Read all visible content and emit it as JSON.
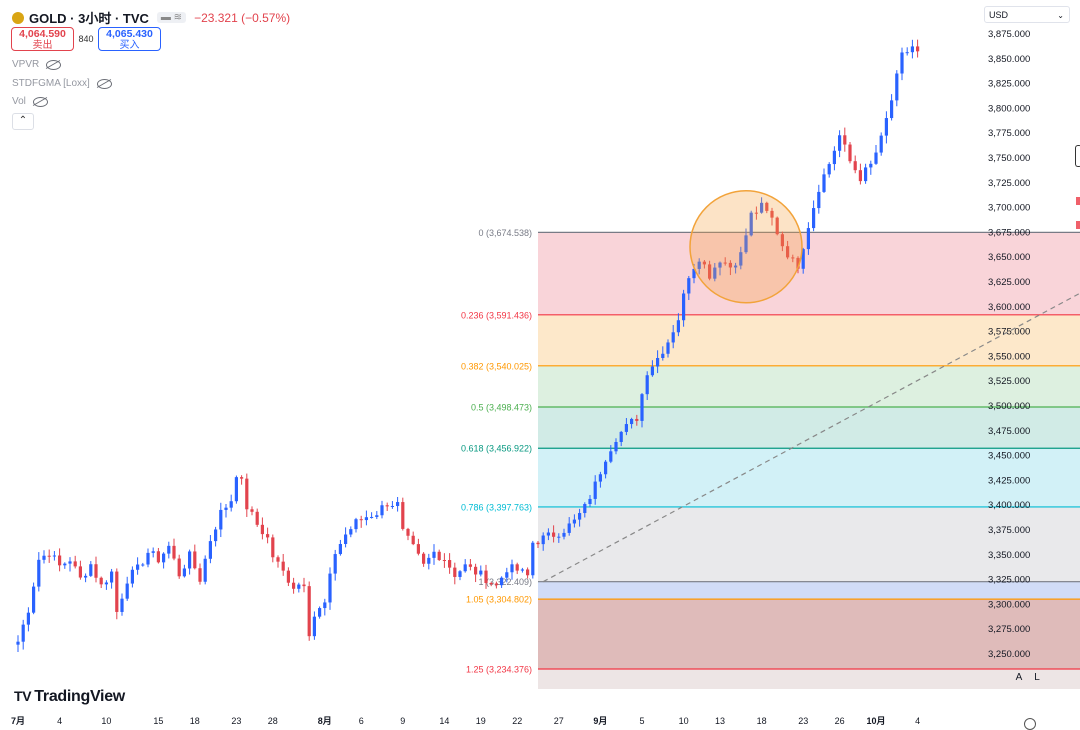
{
  "header": {
    "symbol": "GOLD · 3小时 · TVC",
    "chip": "▬ ≋",
    "change": "−23.321 (−0.57%)",
    "sell_price": "4,064.590",
    "sell_label": "卖出",
    "spread": "840",
    "buy_price": "4,065.430",
    "buy_label": "买入"
  },
  "indicators": [
    "VPVR",
    "STDFGMA [Loxx]",
    "Vol"
  ],
  "currency": "USD",
  "branding": "TradingView",
  "scale_buttons": [
    "A",
    "L"
  ],
  "colors": {
    "up": "#26a69a",
    "down": "#ef5350",
    "up_candle": "#2962ff",
    "down_candle": "#e2434d"
  },
  "chart_data": {
    "type": "candlestick",
    "symbol": "GOLD",
    "timeframe": "3小时",
    "ylim": [
      3225,
      3900
    ],
    "y_ticks": [
      3250,
      3275,
      3300,
      3325,
      3350,
      3375,
      3400,
      3425,
      3450,
      3475,
      3500,
      3525,
      3550,
      3575,
      3600,
      3625,
      3650,
      3675,
      3700,
      3725,
      3750,
      3775,
      3800,
      3825,
      3850,
      3875
    ],
    "y_tick_labels": [
      "3,250.000",
      "3,275.000",
      "3,300.000",
      "3,325.000",
      "3,350.000",
      "3,375.000",
      "3,400.000",
      "3,425.000",
      "3,450.000",
      "3,475.000",
      "3,500.000",
      "3,525.000",
      "3,550.000",
      "3,575.000",
      "3,600.000",
      "3,625.000",
      "3,650.000",
      "3,675.000",
      "3,700.000",
      "3,725.000",
      "3,750.000",
      "3,775.000",
      "3,800.000",
      "3,825.000",
      "3,850.000",
      "3,875.000"
    ],
    "x_tick_labels": [
      "7月",
      "4",
      "10",
      "15",
      "18",
      "23",
      "28",
      "8月",
      "6",
      "9",
      "14",
      "19",
      "22",
      "27",
      "9月",
      "5",
      "10",
      "13",
      "18",
      "23",
      "26",
      "10月",
      "4"
    ],
    "x_tick_positions": [
      0,
      8,
      17,
      27,
      34,
      42,
      49,
      59,
      66,
      74,
      82,
      89,
      96,
      104,
      112,
      120,
      128,
      135,
      143,
      151,
      158,
      165,
      173
    ],
    "last_index": 173,
    "price_path": [
      [
        0,
        3262
      ],
      [
        2,
        3295
      ],
      [
        4,
        3345
      ],
      [
        6,
        3352
      ],
      [
        8,
        3338
      ],
      [
        10,
        3345
      ],
      [
        12,
        3325
      ],
      [
        14,
        3340
      ],
      [
        16,
        3318
      ],
      [
        18,
        3332
      ],
      [
        19,
        3292
      ],
      [
        21,
        3325
      ],
      [
        23,
        3335
      ],
      [
        25,
        3352
      ],
      [
        27,
        3345
      ],
      [
        29,
        3358
      ],
      [
        31,
        3330
      ],
      [
        33,
        3348
      ],
      [
        35,
        3325
      ],
      [
        37,
        3365
      ],
      [
        39,
        3392
      ],
      [
        41,
        3405
      ],
      [
        42,
        3432
      ],
      [
        43,
        3422
      ],
      [
        44,
        3398
      ],
      [
        46,
        3380
      ],
      [
        48,
        3366
      ],
      [
        49,
        3348
      ],
      [
        51,
        3332
      ],
      [
        53,
        3318
      ],
      [
        55,
        3322
      ],
      [
        56,
        3272
      ],
      [
        57,
        3288
      ],
      [
        59,
        3300
      ],
      [
        61,
        3352
      ],
      [
        63,
        3370
      ],
      [
        65,
        3382
      ],
      [
        67,
        3388
      ],
      [
        69,
        3392
      ],
      [
        71,
        3402
      ],
      [
        73,
        3400
      ],
      [
        74,
        3372
      ],
      [
        76,
        3356
      ],
      [
        78,
        3338
      ],
      [
        80,
        3352
      ],
      [
        82,
        3346
      ],
      [
        84,
        3330
      ],
      [
        86,
        3338
      ],
      [
        88,
        3332
      ],
      [
        90,
        3326
      ],
      [
        92,
        3318
      ],
      [
        94,
        3336
      ],
      [
        96,
        3334
      ],
      [
        98,
        3328
      ],
      [
        99,
        3362
      ],
      [
        101,
        3366
      ],
      [
        103,
        3370
      ],
      [
        105,
        3375
      ],
      [
        107,
        3383
      ],
      [
        109,
        3397
      ],
      [
        111,
        3420
      ],
      [
        113,
        3448
      ],
      [
        115,
        3468
      ],
      [
        117,
        3478
      ],
      [
        119,
        3488
      ],
      [
        121,
        3535
      ],
      [
        123,
        3548
      ],
      [
        125,
        3565
      ],
      [
        127,
        3588
      ],
      [
        129,
        3632
      ],
      [
        131,
        3650
      ],
      [
        133,
        3632
      ],
      [
        135,
        3648
      ],
      [
        137,
        3640
      ],
      [
        139,
        3652
      ],
      [
        141,
        3692
      ],
      [
        143,
        3700
      ],
      [
        145,
        3688
      ],
      [
        147,
        3662
      ],
      [
        149,
        3645
      ],
      [
        150,
        3642
      ],
      [
        152,
        3682
      ],
      [
        154,
        3720
      ],
      [
        156,
        3744
      ],
      [
        158,
        3772
      ],
      [
        160,
        3746
      ],
      [
        162,
        3730
      ],
      [
        164,
        3742
      ],
      [
        166,
        3768
      ],
      [
        168,
        3808
      ],
      [
        170,
        3852
      ],
      [
        172,
        3862
      ],
      [
        174,
        3848
      ],
      [
        176,
        3874
      ],
      [
        177,
        3895
      ]
    ],
    "fibonacci": {
      "levels": [
        {
          "label": "0 (3,674.538)",
          "value": 3674.538,
          "color": "#787b86",
          "fill": "#f7c9cf"
        },
        {
          "label": "0.236 (3,591.436)",
          "value": 3591.436,
          "color": "#f23645",
          "fill": "#fde2bd"
        },
        {
          "label": "0.382 (3,540.025)",
          "value": 3540.025,
          "color": "#ff9800",
          "fill": "#d5ecd8"
        },
        {
          "label": "0.5 (3,498.473)",
          "value": 3498.473,
          "color": "#4caf50",
          "fill": "#c5e6e0"
        },
        {
          "label": "0.618 (3,456.922)",
          "value": 3456.922,
          "color": "#089981",
          "fill": "#c7eef5"
        },
        {
          "label": "0.786 (3,397.763)",
          "value": 3397.763,
          "color": "#00bcd4",
          "fill": "#e4e4e6"
        },
        {
          "label": "1 (3,322.409)",
          "value": 3322.409,
          "color": "#787b86",
          "fill": "#c6d3f5"
        },
        {
          "label": "1.05 (3,304.802)",
          "value": 3304.802,
          "color": "#ff9800",
          "fill": "#d7aaa9"
        },
        {
          "label": "1.25 (3,234.376)",
          "value": 3234.376,
          "color": "#f23645",
          "fill": "#e8dede"
        }
      ],
      "start_index": 100,
      "end_index": 226
    },
    "trendline": {
      "from": [
        101,
        3322.409
      ],
      "to": [
        226,
        3674.538
      ]
    },
    "highlight_circle": {
      "center_index": 140,
      "center_value": 3660
    }
  }
}
